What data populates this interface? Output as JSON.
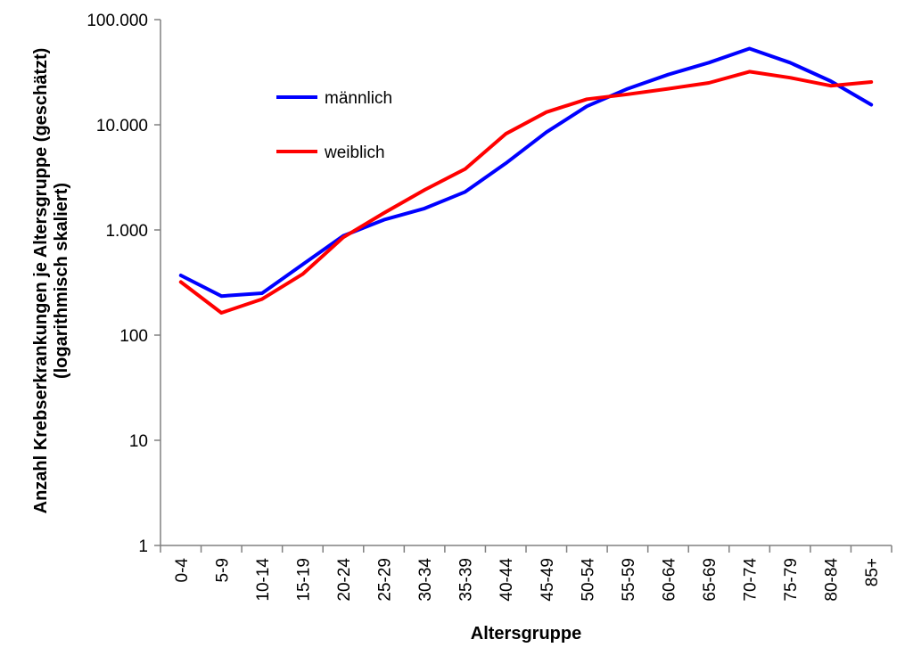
{
  "chart_data": {
    "type": "line",
    "title": "",
    "xlabel": "Altersgruppe",
    "ylabel_line1": "Anzahl Krebserkrankungen je Altersgruppe (geschätzt)",
    "ylabel_line2": "(logarithmisch skaliert)",
    "y_scale": "log",
    "ylim": [
      1,
      100000
    ],
    "y_ticks": [
      1,
      10,
      100,
      1000,
      10000,
      100000
    ],
    "y_tick_labels": [
      "1",
      "10",
      "100",
      "1.000",
      "10.000",
      "100.000"
    ],
    "grid": false,
    "legend_position": "top-left",
    "categories": [
      "0-4",
      "5-9",
      "10-14",
      "15-19",
      "20-24",
      "25-29",
      "30-34",
      "35-39",
      "40-44",
      "45-49",
      "50-54",
      "55-59",
      "60-64",
      "65-69",
      "70-74",
      "75-79",
      "80-84",
      "85+"
    ],
    "series": [
      {
        "name": "männlich",
        "color": "#0000ff",
        "values": [
          370,
          235,
          250,
          470,
          880,
          1250,
          1600,
          2300,
          4300,
          8500,
          15000,
          22000,
          30000,
          39000,
          53000,
          39000,
          26000,
          15500
        ]
      },
      {
        "name": "weiblich",
        "color": "#ff0000",
        "values": [
          320,
          163,
          220,
          380,
          850,
          1450,
          2400,
          3800,
          8200,
          13200,
          17500,
          19500,
          22000,
          25000,
          32000,
          28000,
          23500,
          25500
        ]
      }
    ]
  }
}
